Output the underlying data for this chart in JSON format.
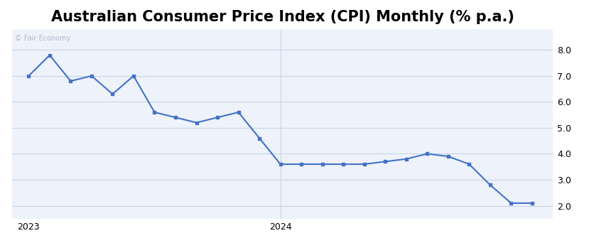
{
  "title": "Australian Consumer Price Index (CPI) Monthly (% p.a.)",
  "watermark": "© Fair Economy",
  "line_color": "#4472C4",
  "bg_color": "#ffffff",
  "plot_bg_color": "#eef2fb",
  "grid_color": "#c8d4e8",
  "x_labels": [
    "2023",
    "2024"
  ],
  "ylim": [
    1.5,
    8.8
  ],
  "yticks": [
    2.0,
    3.0,
    4.0,
    5.0,
    6.0,
    7.0,
    8.0
  ],
  "months": [
    0,
    1,
    2,
    3,
    4,
    5,
    6,
    7,
    8,
    9,
    10,
    11,
    12,
    13,
    14,
    15,
    16,
    17,
    18,
    19,
    20,
    21,
    22,
    23,
    24
  ],
  "values": [
    7.0,
    7.8,
    6.8,
    7.0,
    6.3,
    7.0,
    5.6,
    5.4,
    5.2,
    5.4,
    5.6,
    4.6,
    3.6,
    3.6,
    3.6,
    3.6,
    3.6,
    3.7,
    3.8,
    4.0,
    3.9,
    3.6,
    2.8,
    2.1,
    2.1
  ],
  "marker_size": 3.5,
  "line_width": 1.5,
  "title_fontsize": 15,
  "tick_fontsize": 9,
  "watermark_fontsize": 7,
  "x2023_pos": 0,
  "x2024_pos": 12,
  "xlim": [
    -0.8,
    25.0
  ]
}
